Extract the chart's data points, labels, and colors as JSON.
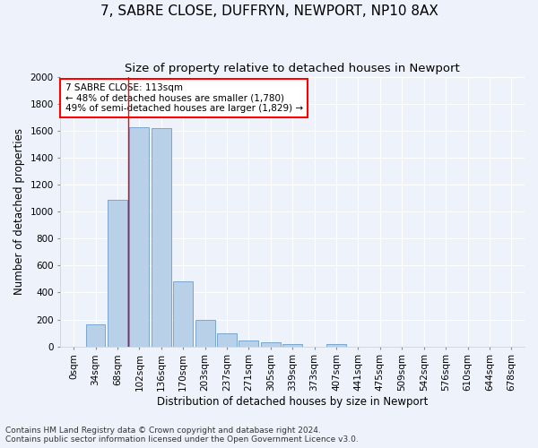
{
  "title": "7, SABRE CLOSE, DUFFRYN, NEWPORT, NP10 8AX",
  "subtitle": "Size of property relative to detached houses in Newport",
  "xlabel": "Distribution of detached houses by size in Newport",
  "ylabel": "Number of detached properties",
  "footnote1": "Contains HM Land Registry data © Crown copyright and database right 2024.",
  "footnote2": "Contains public sector information licensed under the Open Government Licence v3.0.",
  "bar_categories": [
    "0sqm",
    "34sqm",
    "68sqm",
    "102sqm",
    "136sqm",
    "170sqm",
    "203sqm",
    "237sqm",
    "271sqm",
    "305sqm",
    "339sqm",
    "373sqm",
    "407sqm",
    "441sqm",
    "475sqm",
    "509sqm",
    "542sqm",
    "576sqm",
    "610sqm",
    "644sqm",
    "678sqm"
  ],
  "bar_values": [
    0,
    165,
    1090,
    1625,
    1620,
    480,
    200,
    100,
    45,
    30,
    20,
    0,
    20,
    0,
    0,
    0,
    0,
    0,
    0,
    0,
    0
  ],
  "bar_color": "#b8d0e8",
  "bar_edge_color": "#5a8fc2",
  "vline_x": 2.5,
  "vline_color": "red",
  "annotation_text": "7 SABRE CLOSE: 113sqm\n← 48% of detached houses are smaller (1,780)\n49% of semi-detached houses are larger (1,829) →",
  "annotation_box_color": "white",
  "annotation_box_edge": "red",
  "ylim": [
    0,
    2000
  ],
  "yticks": [
    0,
    200,
    400,
    600,
    800,
    1000,
    1200,
    1400,
    1600,
    1800,
    2000
  ],
  "bg_color": "#eef2fb",
  "grid_color": "white",
  "title_fontsize": 11,
  "subtitle_fontsize": 9.5,
  "axis_label_fontsize": 8.5,
  "tick_fontsize": 7.5,
  "footnote_fontsize": 6.5,
  "annotation_fontsize": 7.5
}
